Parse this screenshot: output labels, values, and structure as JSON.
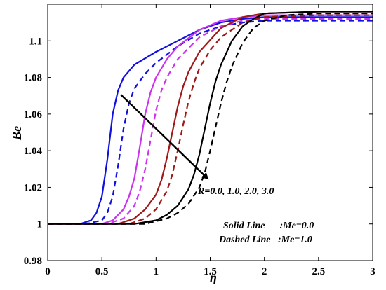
{
  "chart_data": {
    "type": "line",
    "title": "",
    "xlabel": "η",
    "ylabel": "Be",
    "xlim": [
      0,
      3
    ],
    "ylim": [
      0.98,
      1.12
    ],
    "xticks": [
      "0",
      "0.5",
      "1",
      "1.5",
      "2",
      "2.5",
      "3"
    ],
    "yticks": [
      "0.98",
      "1",
      "1.02",
      "1.04",
      "1.06",
      "1.08",
      "1.1"
    ],
    "grid": false,
    "legend": "none",
    "annotations": {
      "R_text": "R=0.0, 1.0, 2.0, 3.0",
      "solid_text": "Solid Line      :Me=0.0",
      "dashed_text": "Dashed Line   :Me=1.0"
    },
    "series": [
      {
        "R": 0.0,
        "Me": 0.0,
        "style": "solid",
        "color": "#1010e0",
        "x": [
          0,
          0.3,
          0.4,
          0.45,
          0.5,
          0.55,
          0.6,
          0.65,
          0.7,
          0.8,
          1.0,
          1.2,
          1.4,
          1.6,
          1.8,
          2.0,
          2.5,
          3.0
        ],
        "y": [
          1.0,
          1.0,
          1.002,
          1.006,
          1.015,
          1.035,
          1.06,
          1.073,
          1.08,
          1.087,
          1.094,
          1.1,
          1.106,
          1.11,
          1.112,
          1.113,
          1.113,
          1.113
        ]
      },
      {
        "R": 0.0,
        "Me": 1.0,
        "style": "dashed",
        "color": "#1010e0",
        "x": [
          0,
          0.35,
          0.5,
          0.55,
          0.6,
          0.65,
          0.7,
          0.75,
          0.8,
          0.9,
          1.0,
          1.2,
          1.4,
          1.6,
          1.8,
          2.0,
          2.5,
          3.0
        ],
        "y": [
          1.0,
          1.0,
          1.002,
          1.006,
          1.015,
          1.032,
          1.052,
          1.066,
          1.074,
          1.082,
          1.088,
          1.097,
          1.104,
          1.108,
          1.11,
          1.111,
          1.111,
          1.111
        ]
      },
      {
        "R": 1.0,
        "Me": 0.0,
        "style": "solid",
        "color": "#cc33ee",
        "x": [
          0,
          0.5,
          0.6,
          0.7,
          0.75,
          0.8,
          0.85,
          0.9,
          0.95,
          1.0,
          1.1,
          1.2,
          1.4,
          1.6,
          1.8,
          2.0,
          2.5,
          3.0
        ],
        "y": [
          1.0,
          1.0,
          1.002,
          1.008,
          1.015,
          1.025,
          1.042,
          1.06,
          1.072,
          1.08,
          1.09,
          1.097,
          1.106,
          1.111,
          1.113,
          1.114,
          1.114,
          1.114
        ]
      },
      {
        "R": 1.0,
        "Me": 1.0,
        "style": "dashed",
        "color": "#cc33ee",
        "x": [
          0,
          0.55,
          0.7,
          0.8,
          0.85,
          0.9,
          0.95,
          1.0,
          1.05,
          1.1,
          1.2,
          1.4,
          1.6,
          1.8,
          2.0,
          2.5,
          3.0
        ],
        "y": [
          1.0,
          1.0,
          1.003,
          1.01,
          1.018,
          1.03,
          1.046,
          1.062,
          1.073,
          1.08,
          1.09,
          1.102,
          1.108,
          1.111,
          1.112,
          1.112,
          1.112
        ]
      },
      {
        "R": 2.0,
        "Me": 0.0,
        "style": "solid",
        "color": "#a01818",
        "x": [
          0,
          0.65,
          0.8,
          0.9,
          1.0,
          1.05,
          1.1,
          1.15,
          1.2,
          1.25,
          1.3,
          1.4,
          1.6,
          1.8,
          2.0,
          2.5,
          3.0
        ],
        "y": [
          1.0,
          1.0,
          1.003,
          1.008,
          1.016,
          1.024,
          1.036,
          1.05,
          1.064,
          1.075,
          1.083,
          1.094,
          1.107,
          1.113,
          1.115,
          1.116,
          1.116
        ]
      },
      {
        "R": 2.0,
        "Me": 1.0,
        "style": "dashed",
        "color": "#a01818",
        "x": [
          0,
          0.75,
          0.9,
          1.0,
          1.1,
          1.15,
          1.2,
          1.25,
          1.3,
          1.35,
          1.4,
          1.5,
          1.6,
          1.8,
          2.0,
          2.5,
          3.0
        ],
        "y": [
          1.0,
          1.0,
          1.003,
          1.008,
          1.018,
          1.027,
          1.04,
          1.054,
          1.067,
          1.077,
          1.085,
          1.095,
          1.102,
          1.11,
          1.113,
          1.114,
          1.114
        ]
      },
      {
        "R": 3.0,
        "Me": 0.0,
        "style": "solid",
        "color": "#000000",
        "x": [
          0,
          0.8,
          1.0,
          1.1,
          1.2,
          1.3,
          1.35,
          1.4,
          1.45,
          1.5,
          1.55,
          1.6,
          1.7,
          1.8,
          1.9,
          2.0,
          2.5,
          3.0
        ],
        "y": [
          1.0,
          1.0,
          1.002,
          1.005,
          1.01,
          1.019,
          1.027,
          1.038,
          1.052,
          1.066,
          1.078,
          1.087,
          1.1,
          1.108,
          1.112,
          1.115,
          1.116,
          1.116
        ]
      },
      {
        "R": 3.0,
        "Me": 1.0,
        "style": "dashed",
        "color": "#000000",
        "x": [
          0,
          0.9,
          1.1,
          1.2,
          1.3,
          1.4,
          1.45,
          1.5,
          1.55,
          1.6,
          1.65,
          1.7,
          1.8,
          1.9,
          2.0,
          2.2,
          2.5,
          3.0
        ],
        "y": [
          1.0,
          1.0,
          1.003,
          1.006,
          1.011,
          1.02,
          1.028,
          1.04,
          1.053,
          1.066,
          1.077,
          1.086,
          1.099,
          1.107,
          1.111,
          1.114,
          1.115,
          1.115
        ]
      }
    ]
  }
}
